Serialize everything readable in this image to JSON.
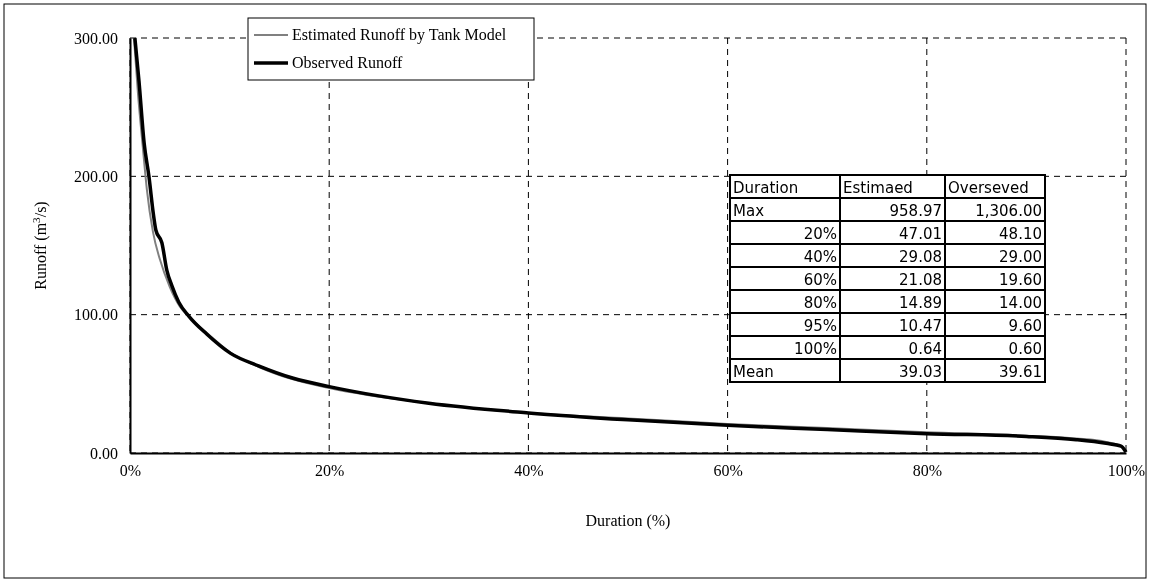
{
  "chart_data": {
    "type": "line",
    "xlabel": "Duration (%)",
    "ylabel": "Runoff (m$^{3}$/s)",
    "xlim": [
      0,
      100
    ],
    "ylim": [
      0,
      300
    ],
    "xticks": [
      {
        "value": 0,
        "label": "0%"
      },
      {
        "value": 20,
        "label": "20%"
      },
      {
        "value": 40,
        "label": "40%"
      },
      {
        "value": 60,
        "label": "60%"
      },
      {
        "value": 80,
        "label": "80%"
      },
      {
        "value": 100,
        "label": "100%"
      }
    ],
    "yticks": [
      {
        "value": 0,
        "label": "0.00"
      },
      {
        "value": 100,
        "label": "100.00"
      },
      {
        "value": 200,
        "label": "200.00"
      },
      {
        "value": 300,
        "label": "300.00"
      }
    ],
    "grid": true,
    "legend": "top left",
    "series": [
      {
        "name": "Estimated Runoff by Tank Model",
        "color": "#808080",
        "x": [
          0.4,
          0.8,
          1.3,
          1.7,
          2.3,
          3,
          4,
          5,
          6,
          8,
          10,
          13,
          16,
          20,
          30,
          40,
          50,
          60,
          70,
          80,
          90,
          95,
          98,
          99.5,
          100
        ],
        "values": [
          300,
          260,
          220,
          190,
          160,
          140,
          120,
          106,
          98,
          85,
          73,
          62,
          54,
          47,
          36,
          29,
          25,
          21,
          18,
          15,
          12.5,
          10.5,
          8,
          5,
          0.64
        ]
      },
      {
        "name": "Observed Runoff",
        "color": "#000000",
        "x": [
          0.49,
          0.9,
          1.42,
          1.9,
          2.36,
          2.6,
          3.2,
          3.7,
          4.2,
          4.9,
          5.9,
          7.7,
          10.1,
          12.9,
          16.4,
          20,
          30,
          40,
          50,
          60,
          70,
          80,
          90,
          95,
          98,
          99.5,
          100
        ],
        "values": [
          300,
          269,
          224,
          200,
          172,
          161,
          152,
          132,
          121,
          109,
          99,
          86,
          72,
          63,
          54,
          48,
          36,
          29,
          24,
          20,
          17,
          14,
          12,
          9.6,
          7,
          5,
          0.6
        ]
      }
    ],
    "annotations": [
      "Duration",
      "Estimaed",
      "Overseved",
      "Max",
      "958.97",
      "1,306.00",
      "20%",
      "47.01",
      "48.10",
      "40%",
      "29.08",
      "29.00",
      "60%",
      "21.08",
      "19.60",
      "80%",
      "14.89",
      "14.00",
      "95%",
      "10.47",
      "9.60",
      "100%",
      "0.64",
      "0.60",
      "Mean",
      "39.03",
      "39.61"
    ]
  }
}
